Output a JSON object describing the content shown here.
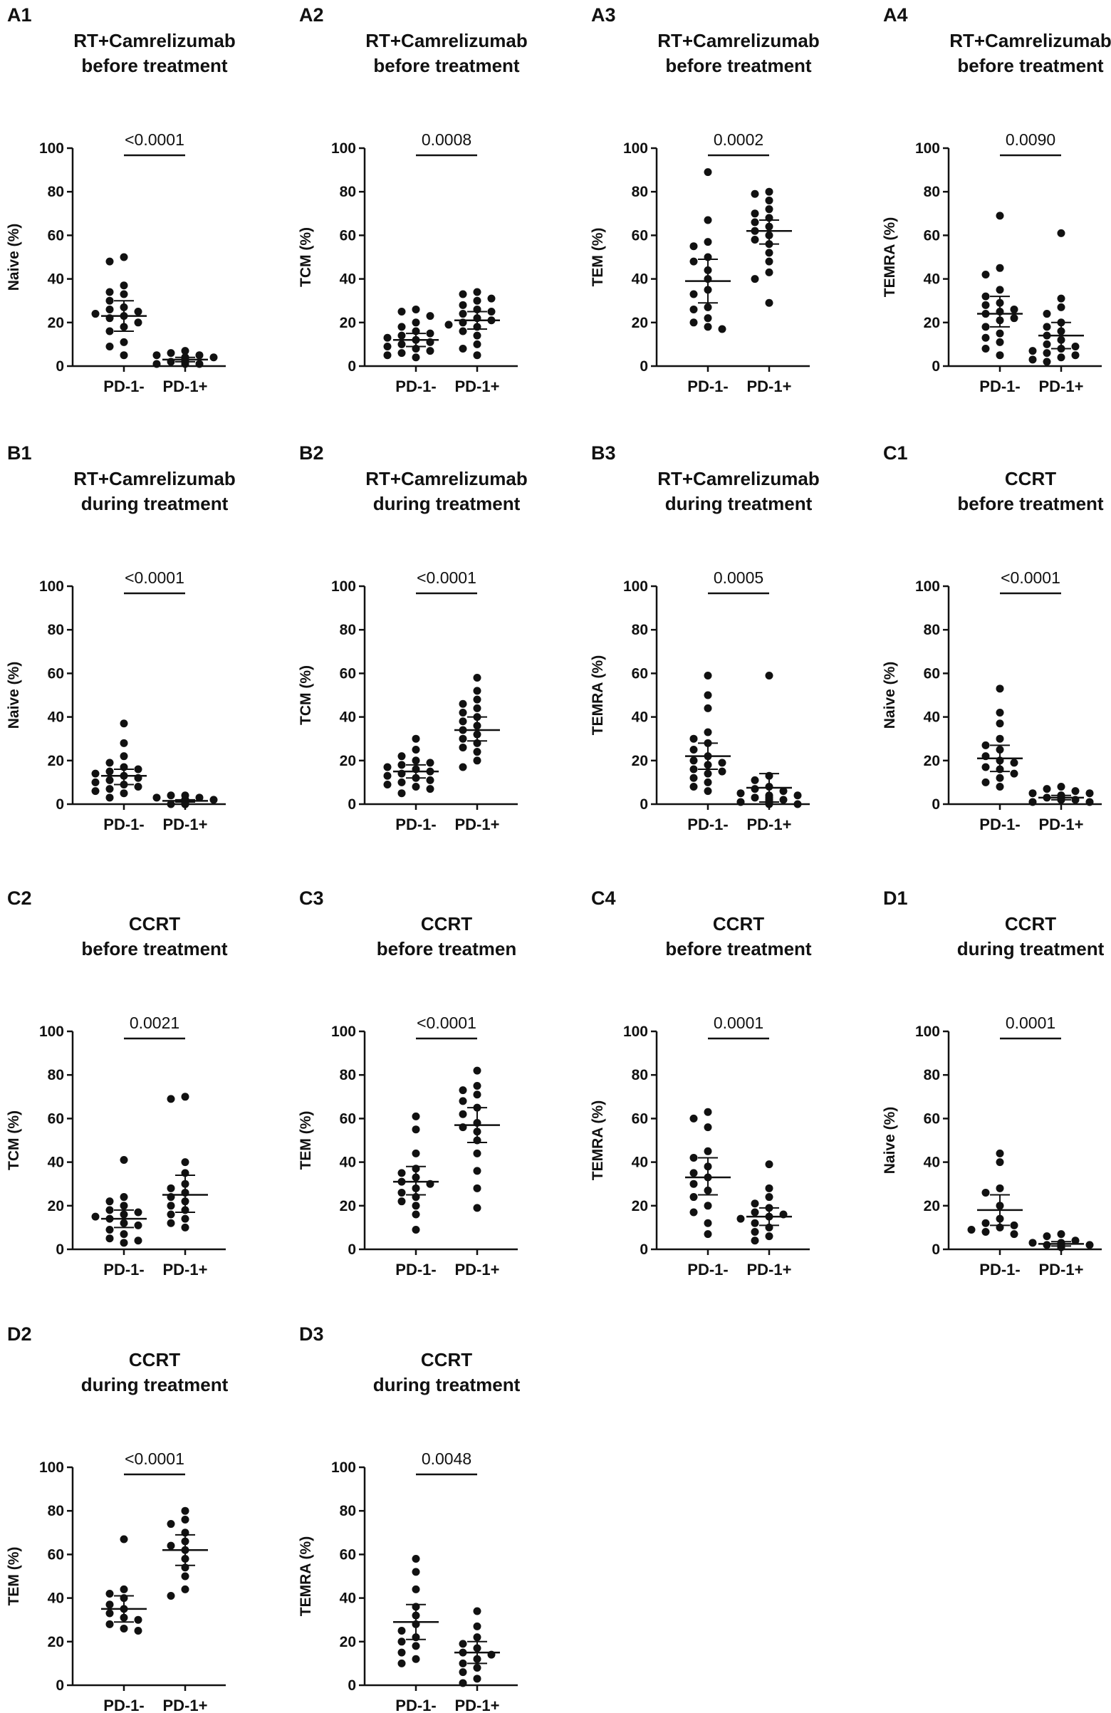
{
  "figure": {
    "background": "#ffffff",
    "ink": "#111111"
  },
  "chart_data": [
    {
      "id": "A1",
      "type": "scatter",
      "title": [
        "RT+Camrelizumab",
        "before treatment"
      ],
      "ylabel": "Naive (%)",
      "ylim": [
        0,
        100
      ],
      "yticks": [
        "0",
        "20",
        "40",
        "60",
        "80",
        "100"
      ],
      "categories": [
        "PD-1-",
        "PD-1+"
      ],
      "p_value": "<0.0001",
      "series": [
        {
          "name": "PD-1-",
          "values": [
            50,
            48,
            37,
            34,
            33,
            30,
            27,
            26,
            25,
            24,
            23,
            22,
            20,
            18,
            16,
            11,
            9,
            5
          ],
          "mean": 23,
          "ci": [
            16,
            30
          ]
        },
        {
          "name": "PD-1+",
          "values": [
            7,
            6,
            5,
            5,
            4,
            4,
            4,
            3,
            3,
            3,
            3,
            2,
            2,
            2,
            2,
            1,
            1,
            1
          ],
          "mean": 3,
          "ci": [
            2,
            4
          ]
        }
      ]
    },
    {
      "id": "A2",
      "type": "scatter",
      "title": [
        "RT+Camrelizumab",
        "before treatment"
      ],
      "ylabel": "TCM (%)",
      "ylim": [
        0,
        100
      ],
      "yticks": [
        "0",
        "20",
        "40",
        "60",
        "80",
        "100"
      ],
      "categories": [
        "PD-1-",
        "PD-1+"
      ],
      "p_value": "0.0008",
      "series": [
        {
          "name": "PD-1-",
          "values": [
            26,
            25,
            23,
            20,
            18,
            16,
            15,
            14,
            13,
            12,
            11,
            10,
            9,
            8,
            7,
            6,
            5,
            4
          ],
          "mean": 12,
          "ci": [
            9,
            15
          ]
        },
        {
          "name": "PD-1+",
          "values": [
            34,
            33,
            31,
            30,
            28,
            26,
            25,
            24,
            22,
            21,
            20,
            19,
            18,
            16,
            14,
            10,
            8,
            5
          ],
          "mean": 21,
          "ci": [
            17,
            25
          ]
        }
      ]
    },
    {
      "id": "A3",
      "type": "scatter",
      "title": [
        "RT+Camrelizumab",
        "before treatment"
      ],
      "ylabel": "TEM (%)",
      "ylim": [
        0,
        100
      ],
      "yticks": [
        "0",
        "20",
        "40",
        "60",
        "80",
        "100"
      ],
      "categories": [
        "PD-1-",
        "PD-1+"
      ],
      "p_value": "0.0002",
      "series": [
        {
          "name": "PD-1-",
          "values": [
            89,
            67,
            57,
            55,
            50,
            48,
            44,
            40,
            35,
            33,
            27,
            26,
            22,
            20,
            18,
            17
          ],
          "mean": 39,
          "ci": [
            29,
            49
          ]
        },
        {
          "name": "PD-1+",
          "values": [
            80,
            79,
            76,
            72,
            70,
            68,
            66,
            64,
            62,
            60,
            58,
            56,
            52,
            48,
            43,
            40,
            29
          ],
          "mean": 62,
          "ci": [
            56,
            67
          ]
        }
      ]
    },
    {
      "id": "A4",
      "type": "scatter",
      "title": [
        "RT+Camrelizumab",
        "before treatment"
      ],
      "ylabel": "TEMRA (%)",
      "ylim": [
        0,
        100
      ],
      "yticks": [
        "0",
        "20",
        "40",
        "60",
        "80",
        "100"
      ],
      "categories": [
        "PD-1-",
        "PD-1+"
      ],
      "p_value": "0.0090",
      "series": [
        {
          "name": "PD-1-",
          "values": [
            69,
            45,
            42,
            35,
            32,
            29,
            28,
            26,
            25,
            24,
            22,
            21,
            18,
            15,
            13,
            11,
            8,
            5
          ],
          "mean": 24,
          "ci": [
            18,
            32
          ]
        },
        {
          "name": "PD-1+",
          "values": [
            61,
            31,
            27,
            24,
            20,
            18,
            16,
            14,
            12,
            10,
            9,
            8,
            7,
            6,
            5,
            4,
            3,
            2
          ],
          "mean": 14,
          "ci": [
            8,
            20
          ]
        }
      ]
    },
    {
      "id": "B1",
      "type": "scatter",
      "title": [
        "RT+Camrelizumab",
        "during treatment"
      ],
      "ylabel": "Naive (%)",
      "ylim": [
        0,
        100
      ],
      "yticks": [
        "0",
        "20",
        "40",
        "60",
        "80",
        "100"
      ],
      "categories": [
        "PD-1-",
        "PD-1+"
      ],
      "p_value": "<0.0001",
      "series": [
        {
          "name": "PD-1-",
          "values": [
            37,
            28,
            22,
            19,
            17,
            16,
            15,
            14,
            13,
            12,
            11,
            10,
            9,
            8,
            7,
            6,
            5,
            3
          ],
          "mean": 13,
          "ci": [
            9,
            16
          ]
        },
        {
          "name": "PD-1+",
          "values": [
            4,
            4,
            3,
            3,
            2,
            2,
            2,
            2,
            1,
            1,
            1,
            1,
            1,
            1,
            0,
            0,
            0,
            0
          ],
          "mean": 1.5,
          "ci": [
            1,
            2
          ]
        }
      ]
    },
    {
      "id": "B2",
      "type": "scatter",
      "title": [
        "RT+Camrelizumab",
        "during treatment"
      ],
      "ylabel": "TCM (%)",
      "ylim": [
        0,
        100
      ],
      "yticks": [
        "0",
        "20",
        "40",
        "60",
        "80",
        "100"
      ],
      "categories": [
        "PD-1-",
        "PD-1+"
      ],
      "p_value": "<0.0001",
      "series": [
        {
          "name": "PD-1-",
          "values": [
            30,
            25,
            22,
            20,
            19,
            18,
            17,
            16,
            15,
            14,
            13,
            12,
            11,
            10,
            9,
            8,
            7,
            5
          ],
          "mean": 15,
          "ci": [
            12,
            18
          ]
        },
        {
          "name": "PD-1+",
          "values": [
            58,
            52,
            48,
            46,
            44,
            42,
            40,
            38,
            36,
            34,
            32,
            30,
            28,
            26,
            24,
            20,
            17
          ],
          "mean": 34,
          "ci": [
            29,
            40
          ]
        }
      ]
    },
    {
      "id": "B3",
      "type": "scatter",
      "title": [
        "RT+Camrelizumab",
        "during treatment"
      ],
      "ylabel": "TEMRA (%)",
      "ylim": [
        0,
        100
      ],
      "yticks": [
        "0",
        "20",
        "40",
        "60",
        "80",
        "100"
      ],
      "categories": [
        "PD-1-",
        "PD-1+"
      ],
      "p_value": "0.0005",
      "series": [
        {
          "name": "PD-1-",
          "values": [
            59,
            50,
            44,
            33,
            30,
            28,
            25,
            22,
            20,
            19,
            18,
            16,
            15,
            14,
            12,
            10,
            8,
            6
          ],
          "mean": 22,
          "ci": [
            16,
            28
          ]
        },
        {
          "name": "PD-1+",
          "values": [
            59,
            13,
            11,
            8,
            7,
            6,
            5,
            4,
            4,
            3,
            3,
            2,
            2,
            1,
            1,
            1,
            0,
            0
          ],
          "mean": 7.5,
          "ci": [
            1,
            14
          ]
        }
      ]
    },
    {
      "id": "C1",
      "type": "scatter",
      "title": [
        "CCRT",
        "before treatment"
      ],
      "ylabel": "Naive (%)",
      "ylim": [
        0,
        100
      ],
      "yticks": [
        "0",
        "20",
        "40",
        "60",
        "80",
        "100"
      ],
      "categories": [
        "PD-1-",
        "PD-1+"
      ],
      "p_value": "<0.0001",
      "series": [
        {
          "name": "PD-1-",
          "values": [
            53,
            42,
            37,
            30,
            27,
            25,
            22,
            20,
            19,
            17,
            16,
            14,
            12,
            10,
            8
          ],
          "mean": 21,
          "ci": [
            15,
            27
          ]
        },
        {
          "name": "PD-1+",
          "values": [
            8,
            7,
            6,
            5,
            5,
            4,
            4,
            3,
            3,
            3,
            2,
            2,
            2,
            1,
            1
          ],
          "mean": 3,
          "ci": [
            2,
            4
          ]
        }
      ]
    },
    {
      "id": "C2",
      "type": "scatter",
      "title": [
        "CCRT",
        "before treatment"
      ],
      "ylabel": "TCM (%)",
      "ylim": [
        0,
        100
      ],
      "yticks": [
        "0",
        "20",
        "40",
        "60",
        "80",
        "100"
      ],
      "categories": [
        "PD-1-",
        "PD-1+"
      ],
      "p_value": "0.0021",
      "series": [
        {
          "name": "PD-1-",
          "values": [
            41,
            24,
            22,
            20,
            18,
            17,
            16,
            15,
            14,
            12,
            11,
            9,
            7,
            5,
            4,
            3
          ],
          "mean": 14,
          "ci": [
            10,
            18
          ]
        },
        {
          "name": "PD-1+",
          "values": [
            70,
            69,
            40,
            35,
            30,
            28,
            26,
            24,
            22,
            20,
            18,
            16,
            14,
            12,
            10
          ],
          "mean": 25,
          "ci": [
            17,
            34
          ]
        }
      ]
    },
    {
      "id": "C3",
      "type": "scatter",
      "title": [
        "CCRT",
        "before treatmen"
      ],
      "ylabel": "TEM (%)",
      "ylim": [
        0,
        100
      ],
      "yticks": [
        "0",
        "20",
        "40",
        "60",
        "80",
        "100"
      ],
      "categories": [
        "PD-1-",
        "PD-1+"
      ],
      "p_value": "<0.0001",
      "series": [
        {
          "name": "PD-1-",
          "values": [
            61,
            55,
            44,
            37,
            35,
            33,
            31,
            30,
            28,
            26,
            24,
            22,
            20,
            16,
            9
          ],
          "mean": 31,
          "ci": [
            25,
            38
          ]
        },
        {
          "name": "PD-1+",
          "values": [
            82,
            75,
            73,
            71,
            68,
            65,
            62,
            58,
            56,
            54,
            50,
            44,
            36,
            28,
            19
          ],
          "mean": 57,
          "ci": [
            49,
            65
          ]
        }
      ]
    },
    {
      "id": "C4",
      "type": "scatter",
      "title": [
        "CCRT",
        "before treatment"
      ],
      "ylabel": "TEMRA (%)",
      "ylim": [
        0,
        100
      ],
      "yticks": [
        "0",
        "20",
        "40",
        "60",
        "80",
        "100"
      ],
      "categories": [
        "PD-1-",
        "PD-1+"
      ],
      "p_value": "0.0001",
      "series": [
        {
          "name": "PD-1-",
          "values": [
            63,
            60,
            56,
            45,
            42,
            38,
            35,
            33,
            30,
            27,
            24,
            20,
            17,
            12,
            7
          ],
          "mean": 33,
          "ci": [
            25,
            42
          ]
        },
        {
          "name": "PD-1+",
          "values": [
            39,
            28,
            24,
            21,
            19,
            17,
            16,
            15,
            14,
            12,
            10,
            8,
            6,
            4
          ],
          "mean": 15,
          "ci": [
            11,
            19
          ]
        }
      ]
    },
    {
      "id": "D1",
      "type": "scatter",
      "title": [
        "CCRT",
        "during treatment"
      ],
      "ylabel": "Naive (%)",
      "ylim": [
        0,
        100
      ],
      "yticks": [
        "0",
        "20",
        "40",
        "60",
        "80",
        "100"
      ],
      "categories": [
        "PD-1-",
        "PD-1+"
      ],
      "p_value": "0.0001",
      "series": [
        {
          "name": "PD-1-",
          "values": [
            44,
            40,
            28,
            26,
            20,
            14,
            12,
            11,
            10,
            9,
            8,
            7
          ],
          "mean": 18,
          "ci": [
            11,
            25
          ]
        },
        {
          "name": "PD-1+",
          "values": [
            7,
            6,
            4,
            3,
            3,
            2,
            2,
            2,
            2,
            1,
            1,
            1
          ],
          "mean": 2.5,
          "ci": [
            1.5,
            3.5
          ]
        }
      ]
    },
    {
      "id": "D2",
      "type": "scatter",
      "title": [
        "CCRT",
        "during treatment"
      ],
      "ylabel": "TEM (%)",
      "ylim": [
        0,
        100
      ],
      "yticks": [
        "0",
        "20",
        "40",
        "60",
        "80",
        "100"
      ],
      "categories": [
        "PD-1-",
        "PD-1+"
      ],
      "p_value": "<0.0001",
      "series": [
        {
          "name": "PD-1-",
          "values": [
            67,
            44,
            42,
            40,
            37,
            35,
            33,
            31,
            30,
            28,
            26,
            25
          ],
          "mean": 35,
          "ci": [
            29,
            41
          ]
        },
        {
          "name": "PD-1+",
          "values": [
            80,
            76,
            74,
            70,
            66,
            64,
            62,
            58,
            54,
            50,
            44,
            41
          ],
          "mean": 62,
          "ci": [
            55,
            69
          ]
        }
      ]
    },
    {
      "id": "D3",
      "type": "scatter",
      "title": [
        "CCRT",
        "during treatment"
      ],
      "ylabel": "TEMRA (%)",
      "ylim": [
        0,
        100
      ],
      "yticks": [
        "0",
        "20",
        "40",
        "60",
        "80",
        "100"
      ],
      "categories": [
        "PD-1-",
        "PD-1+"
      ],
      "p_value": "0.0048",
      "series": [
        {
          "name": "PD-1-",
          "values": [
            58,
            52,
            44,
            36,
            32,
            28,
            25,
            22,
            20,
            18,
            15,
            12,
            10
          ],
          "mean": 29,
          "ci": [
            21,
            37
          ]
        },
        {
          "name": "PD-1+",
          "values": [
            34,
            27,
            22,
            19,
            17,
            15,
            14,
            12,
            10,
            8,
            6,
            3,
            1
          ],
          "mean": 15,
          "ci": [
            10,
            20
          ]
        }
      ]
    }
  ]
}
